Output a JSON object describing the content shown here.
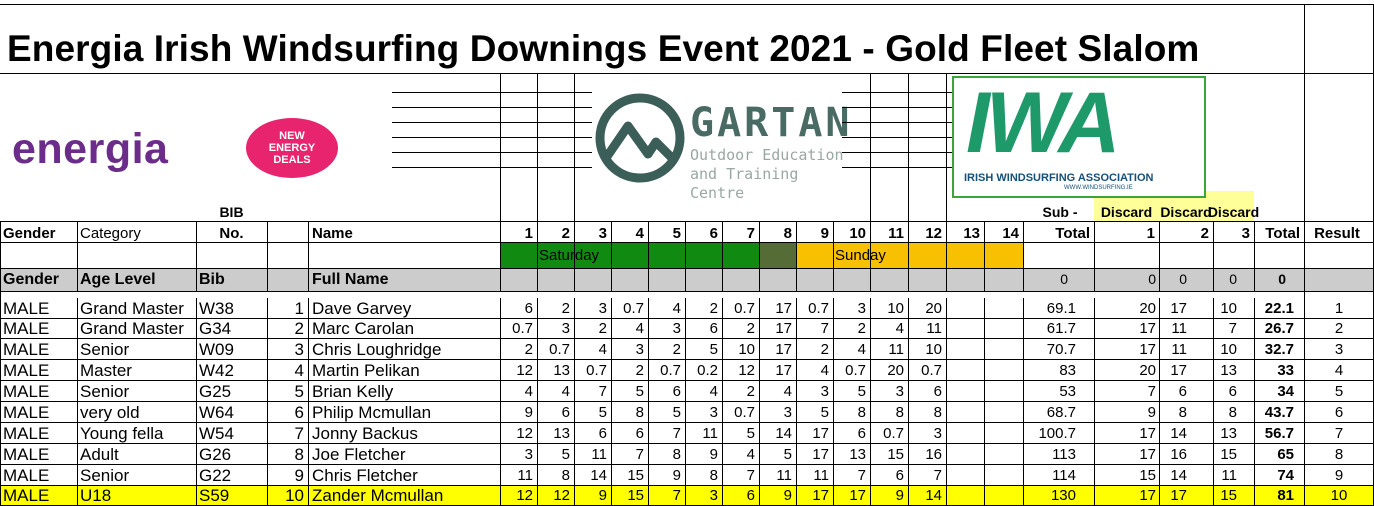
{
  "title": "Energia Irish Windsurfing Downings Event 2021 - Gold Fleet Slalom",
  "logos": {
    "energia": "energia",
    "energia_badge": [
      "NEW",
      "ENERGY",
      "DEALS"
    ],
    "gartan_name": "GARTAN",
    "gartan_sub1": "Outdoor Education",
    "gartan_sub2": "and Training Centre",
    "iwa_letters": "IWA",
    "iwa_name": "IRISH WINDSURFING ASSOCIATION",
    "iwa_url": "WWW.WINDSURFING.IE"
  },
  "header": {
    "bib_top": "BIB",
    "bib_bottom": "No.",
    "gender": "Gender",
    "category": "Category",
    "name": "Name",
    "races": [
      "1",
      "2",
      "3",
      "4",
      "5",
      "6",
      "7",
      "8",
      "9",
      "10",
      "11",
      "12",
      "13",
      "14"
    ],
    "subtotal_top": "Sub -",
    "subtotal_bottom": "Total",
    "discard_labels": [
      "Discard",
      "Discard",
      "Discard"
    ],
    "discard_nums": [
      "1",
      "2",
      "3"
    ],
    "total": "Total",
    "result": "Result"
  },
  "days": {
    "saturday": "Saturday",
    "sunday": "Sunday"
  },
  "summary_row": {
    "gender": "Gender",
    "age_level": "Age Level",
    "bib": "Bib",
    "full_name": "Full Name",
    "subtotal": "0",
    "d1": "0",
    "d2": "0",
    "d3": "0",
    "total": "0"
  },
  "colors": {
    "saturday_green": "#118a11",
    "race8_olive": "#566c36",
    "sunday_orange": "#f7c000",
    "discard_yellow": "#ffff99",
    "highlight_yellow": "#ffff00",
    "gray_row": "#cccccc"
  },
  "rows": [
    {
      "gender": "MALE",
      "category": "Grand Master",
      "bib": "W38",
      "no": "1",
      "name": "Dave Garvey",
      "races": [
        "6",
        "2",
        "3",
        "0.7",
        "4",
        "2",
        "0.7",
        "17",
        "0.7",
        "3",
        "10",
        "20"
      ],
      "subtotal": "69.1",
      "d1": "20",
      "d2": "17",
      "d3": "10",
      "total": "22.1",
      "result": "1"
    },
    {
      "gender": "MALE",
      "category": "Grand Master",
      "bib": "G34",
      "no": "2",
      "name": "Marc Carolan",
      "races": [
        "0.7",
        "3",
        "2",
        "4",
        "3",
        "6",
        "2",
        "17",
        "7",
        "2",
        "4",
        "11"
      ],
      "subtotal": "61.7",
      "d1": "17",
      "d2": "11",
      "d3": "7",
      "total": "26.7",
      "result": "2"
    },
    {
      "gender": "MALE",
      "category": "Senior",
      "bib": "W09",
      "no": "3",
      "name": "Chris Loughridge",
      "races": [
        "2",
        "0.7",
        "4",
        "3",
        "2",
        "5",
        "10",
        "17",
        "2",
        "4",
        "11",
        "10"
      ],
      "subtotal": "70.7",
      "d1": "17",
      "d2": "11",
      "d3": "10",
      "total": "32.7",
      "result": "3"
    },
    {
      "gender": "MALE",
      "category": "Master",
      "bib": "W42",
      "no": "4",
      "name": "Martin Pelikan",
      "races": [
        "12",
        "13",
        "0.7",
        "2",
        "0.7",
        "0.2",
        "12",
        "17",
        "4",
        "0.7",
        "20",
        "0.7"
      ],
      "subtotal": "83",
      "d1": "20",
      "d2": "17",
      "d3": "13",
      "total": "33",
      "result": "4"
    },
    {
      "gender": "MALE",
      "category": "Senior",
      "bib": "G25",
      "no": "5",
      "name": "Brian Kelly",
      "races": [
        "4",
        "4",
        "7",
        "5",
        "6",
        "4",
        "2",
        "4",
        "3",
        "5",
        "3",
        "6"
      ],
      "subtotal": "53",
      "d1": "7",
      "d2": "6",
      "d3": "6",
      "total": "34",
      "result": "5"
    },
    {
      "gender": "MALE",
      "category": "very old",
      "bib": "W64",
      "no": "6",
      "name": "Philip Mcmullan",
      "races": [
        "9",
        "6",
        "5",
        "8",
        "5",
        "3",
        "0.7",
        "3",
        "5",
        "8",
        "8",
        "8"
      ],
      "subtotal": "68.7",
      "d1": "9",
      "d2": "8",
      "d3": "8",
      "total": "43.7",
      "result": "6"
    },
    {
      "gender": "MALE",
      "category": "Young fella",
      "bib": "W54",
      "no": "7",
      "name": "Jonny Backus",
      "races": [
        "12",
        "13",
        "6",
        "6",
        "7",
        "11",
        "5",
        "14",
        "17",
        "6",
        "0.7",
        "3"
      ],
      "subtotal": "100.7",
      "d1": "17",
      "d2": "14",
      "d3": "13",
      "total": "56.7",
      "result": "7"
    },
    {
      "gender": "MALE",
      "category": "Adult",
      "bib": "G26",
      "no": "8",
      "name": "Joe Fletcher",
      "races": [
        "3",
        "5",
        "11",
        "7",
        "8",
        "9",
        "4",
        "5",
        "17",
        "13",
        "15",
        "16"
      ],
      "subtotal": "113",
      "d1": "17",
      "d2": "16",
      "d3": "15",
      "total": "65",
      "result": "8"
    },
    {
      "gender": "MALE",
      "category": "Senior",
      "bib": "G22",
      "no": "9",
      "name": "Chris Fletcher",
      "races": [
        "11",
        "8",
        "14",
        "15",
        "9",
        "8",
        "7",
        "11",
        "11",
        "7",
        "6",
        "7"
      ],
      "subtotal": "114",
      "d1": "15",
      "d2": "14",
      "d3": "11",
      "total": "74",
      "result": "9"
    },
    {
      "gender": "MALE",
      "category": "U18",
      "bib": "S59",
      "no": "10",
      "name": "Zander Mcmullan",
      "races": [
        "12",
        "12",
        "9",
        "15",
        "7",
        "3",
        "6",
        "9",
        "17",
        "17",
        "9",
        "14"
      ],
      "subtotal": "130",
      "d1": "17",
      "d2": "17",
      "d3": "15",
      "total": "81",
      "result": "10"
    }
  ]
}
